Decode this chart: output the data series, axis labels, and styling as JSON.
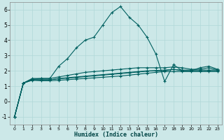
{
  "xlabel": "Humidex (Indice chaleur)",
  "bg_color": "#cce8e8",
  "line_color": "#006060",
  "grid_color": "#b0d8d8",
  "xlim": [
    -0.5,
    23.5
  ],
  "ylim": [
    -1.5,
    6.5
  ],
  "xticks": [
    0,
    1,
    2,
    3,
    4,
    5,
    6,
    7,
    8,
    9,
    10,
    11,
    12,
    13,
    14,
    15,
    16,
    17,
    18,
    19,
    20,
    21,
    22,
    23
  ],
  "yticks": [
    -1,
    0,
    1,
    2,
    3,
    4,
    5,
    6
  ],
  "line1_x": [
    0,
    1,
    2,
    3,
    4,
    5,
    6,
    7,
    8,
    9,
    10,
    11,
    12,
    13,
    14,
    15,
    16,
    17,
    18,
    19,
    20,
    21,
    22,
    23
  ],
  "line1_y": [
    -1.0,
    1.2,
    1.5,
    1.5,
    1.5,
    2.3,
    2.8,
    3.5,
    4.0,
    4.2,
    5.0,
    5.8,
    6.2,
    5.5,
    5.0,
    4.2,
    3.1,
    1.3,
    2.4,
    2.0,
    2.0,
    2.2,
    2.3,
    2.1
  ],
  "line2_x": [
    0,
    1,
    2,
    3,
    4,
    5,
    6,
    7,
    8,
    9,
    10,
    11,
    12,
    13,
    14,
    15,
    16,
    17,
    18,
    19,
    20,
    21,
    22,
    23
  ],
  "line2_y": [
    -1.0,
    1.2,
    1.4,
    1.4,
    1.4,
    1.5,
    1.55,
    1.6,
    1.65,
    1.7,
    1.75,
    1.8,
    1.85,
    1.9,
    1.95,
    2.0,
    2.0,
    2.0,
    2.1,
    2.0,
    2.0,
    2.0,
    2.0,
    2.0
  ],
  "line3_x": [
    0,
    1,
    2,
    3,
    4,
    5,
    6,
    7,
    8,
    9,
    10,
    11,
    12,
    13,
    14,
    15,
    16,
    17,
    18,
    19,
    20,
    21,
    22,
    23
  ],
  "line3_y": [
    -1.0,
    1.2,
    1.42,
    1.42,
    1.42,
    1.48,
    1.52,
    1.56,
    1.62,
    1.67,
    1.72,
    1.77,
    1.82,
    1.87,
    1.92,
    1.97,
    2.02,
    2.05,
    2.08,
    2.05,
    2.05,
    2.05,
    2.05,
    2.05
  ],
  "line4_x": [
    0,
    1,
    2,
    3,
    4,
    5,
    6,
    7,
    8,
    9,
    10,
    11,
    12,
    13,
    14,
    15,
    16,
    17,
    18,
    19,
    20,
    21,
    22,
    23
  ],
  "line4_y": [
    -1.0,
    1.2,
    1.45,
    1.5,
    1.5,
    1.6,
    1.7,
    1.8,
    1.9,
    1.95,
    2.0,
    2.05,
    2.1,
    2.15,
    2.2,
    2.2,
    2.2,
    2.2,
    2.25,
    2.2,
    2.1,
    2.1,
    2.2,
    2.05
  ],
  "line5_x": [
    0,
    1,
    2,
    3,
    4,
    5,
    6,
    7,
    8,
    9,
    10,
    11,
    12,
    13,
    14,
    15,
    16,
    17,
    18,
    19,
    20,
    21,
    22,
    23
  ],
  "line5_y": [
    -1.0,
    1.2,
    1.38,
    1.35,
    1.35,
    1.38,
    1.42,
    1.46,
    1.5,
    1.54,
    1.58,
    1.62,
    1.66,
    1.72,
    1.78,
    1.84,
    1.9,
    1.95,
    1.95,
    1.95,
    1.95,
    1.95,
    1.95,
    1.95
  ]
}
